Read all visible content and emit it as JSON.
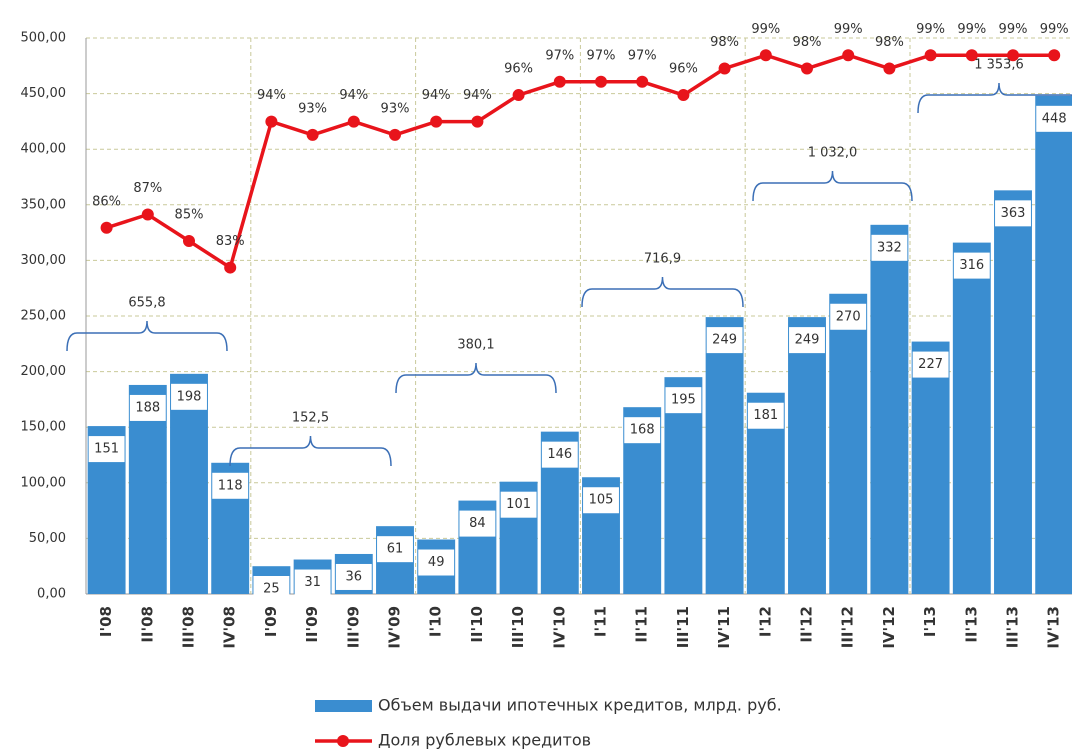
{
  "chart_data": {
    "type": "bar",
    "categories": [
      "I'08",
      "II'08",
      "III'08",
      "IV'08",
      "I'09",
      "II'09",
      "III'09",
      "IV'09",
      "I'10",
      "II'10",
      "III'10",
      "IV'10",
      "I'11",
      "II'11",
      "III'11",
      "IV'11",
      "I'12",
      "II'12",
      "III'12",
      "IV'12",
      "I'13",
      "II'13",
      "III'13",
      "IV'13"
    ],
    "series": [
      {
        "name": "Объем выдачи ипотечных кредитов, млрд. руб.",
        "type": "bar",
        "color": "#3a8dd0",
        "values": [
          151,
          188,
          198,
          118,
          25,
          31,
          36,
          61,
          49,
          84,
          101,
          146,
          105,
          168,
          195,
          249,
          181,
          249,
          270,
          332,
          227,
          316,
          363,
          448
        ]
      },
      {
        "name": "Доля рублевых кредитов",
        "type": "line",
        "axis": "y2",
        "color": "#e8141b",
        "values": [
          86,
          87,
          85,
          83,
          94,
          93,
          94,
          93,
          94,
          94,
          96,
          97,
          97,
          97,
          96,
          98,
          99,
          98,
          99,
          98,
          99,
          99,
          99,
          99
        ],
        "value_labels": [
          "86%",
          "87%",
          "85%",
          "83%",
          "94%",
          "93%",
          "94%",
          "93%",
          "94%",
          "94%",
          "96%",
          "97%",
          "97%",
          "97%",
          "96%",
          "98%",
          "99%",
          "98%",
          "99%",
          "98%",
          "99%",
          "99%",
          "99%",
          "99%"
        ]
      }
    ],
    "annotations": [
      "655,8",
      "152,5",
      "380,1",
      "716,9",
      "1 032,0",
      "1 353,6"
    ],
    "ylim": [
      0,
      500
    ],
    "yticks": [
      {
        "value": 0,
        "label": "0,00"
      },
      {
        "value": 50,
        "label": "50,00"
      },
      {
        "value": 100,
        "label": "100,00"
      },
      {
        "value": 150,
        "label": "150,00"
      },
      {
        "value": 200,
        "label": "200,00"
      },
      {
        "value": 250,
        "label": "250,00"
      },
      {
        "value": 300,
        "label": "300,00"
      },
      {
        "value": 350,
        "label": "350,00"
      },
      {
        "value": 400,
        "label": "400,00"
      },
      {
        "value": 450,
        "label": "450,00"
      },
      {
        "value": 500,
        "label": "500,00"
      }
    ],
    "y2lim": [
      58.4,
      100.3
    ],
    "grid": true,
    "legend": "bottom"
  }
}
